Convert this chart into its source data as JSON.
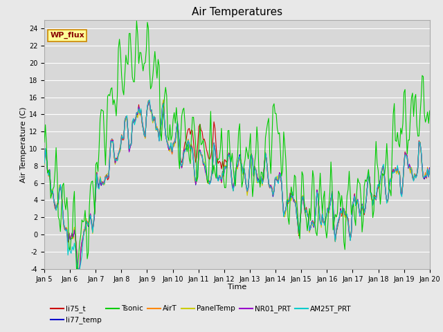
{
  "title": "Air Temperatures",
  "xlabel": "Time",
  "ylabel": "Air Temperature (C)",
  "ylim": [
    -4,
    25
  ],
  "yticks": [
    -4,
    -2,
    0,
    2,
    4,
    6,
    8,
    10,
    12,
    14,
    16,
    18,
    20,
    22,
    24
  ],
  "x_tick_labels": [
    "Jan 5",
    "Jan 6",
    "Jan 7",
    "Jan 8",
    "Jan 9",
    "Jan 10",
    "Jan 11",
    "Jan 12",
    "Jan 13",
    "Jan 14",
    "Jan 15",
    "Jan 16",
    "Jan 17",
    "Jan 18",
    "Jan 19",
    "Jan 20"
  ],
  "series_colors": {
    "li75_t": "#cc0000",
    "li77_temp": "#0000cc",
    "Tsonic": "#00cc00",
    "AirT": "#ff8800",
    "PanelTemp": "#cccc00",
    "NR01_PRT": "#9900cc",
    "AM25T_PRT": "#00cccc"
  },
  "wp_flux_box_color": "#ffff99",
  "wp_flux_border_color": "#cc8800",
  "wp_flux_text_color": "#880000",
  "background_color": "#e8e8e8",
  "plot_bg_color": "#d8d8d8",
  "grid_color": "#ffffff",
  "title_fontsize": 11,
  "axis_label_fontsize": 8,
  "tick_fontsize": 7,
  "legend_fontsize": 7.5
}
